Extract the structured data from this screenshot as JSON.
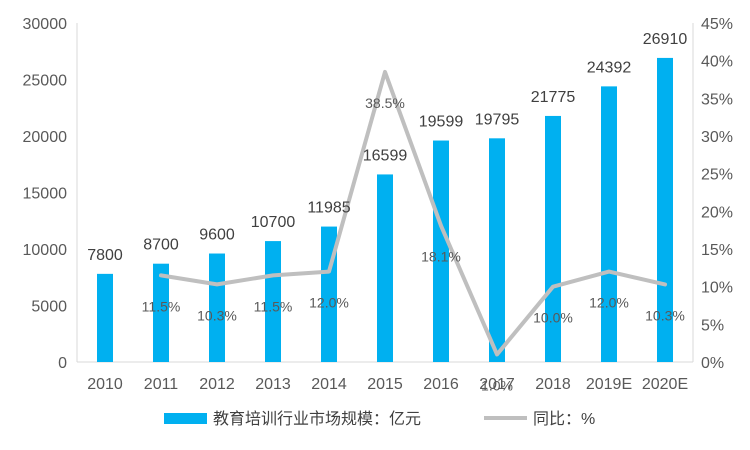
{
  "chart_data": {
    "type": "bar",
    "categories": [
      "2010",
      "2011",
      "2012",
      "2013",
      "2014",
      "2015",
      "2016",
      "2017",
      "2018",
      "2019E",
      "2020E"
    ],
    "series": [
      {
        "name": "教育培训行业市场规模：亿元",
        "type": "bar",
        "axis": "left",
        "color": "#00B0F0",
        "values": [
          7800,
          8700,
          9600,
          10700,
          11985,
          16599,
          19599,
          19795,
          21775,
          24392,
          26910
        ],
        "labels": [
          "7800",
          "8700",
          "9600",
          "10700",
          "11985",
          "16599",
          "19599",
          "19795",
          "21775",
          "24392",
          "26910"
        ]
      },
      {
        "name": "同比：%",
        "type": "line",
        "axis": "right",
        "color": "#BFBFBF",
        "values": [
          null,
          11.5,
          10.3,
          11.5,
          12.0,
          38.5,
          18.1,
          1.0,
          10.0,
          12.0,
          10.3
        ],
        "labels": [
          "",
          "11.5%",
          "10.3%",
          "11.5%",
          "12.0%",
          "38.5%",
          "18.1%",
          "1.0%",
          "10.0%",
          "12.0%",
          "10.3%"
        ]
      }
    ],
    "y_left": {
      "min": 0,
      "max": 30000,
      "ticks": [
        "0",
        "5000",
        "10000",
        "15000",
        "20000",
        "25000",
        "30000"
      ]
    },
    "y_right": {
      "min": 0,
      "max": 45,
      "ticks": [
        "0%",
        "5%",
        "10%",
        "15%",
        "20%",
        "25%",
        "30%",
        "35%",
        "40%",
        "45%"
      ]
    },
    "grid": false,
    "legend_position": "bottom"
  }
}
